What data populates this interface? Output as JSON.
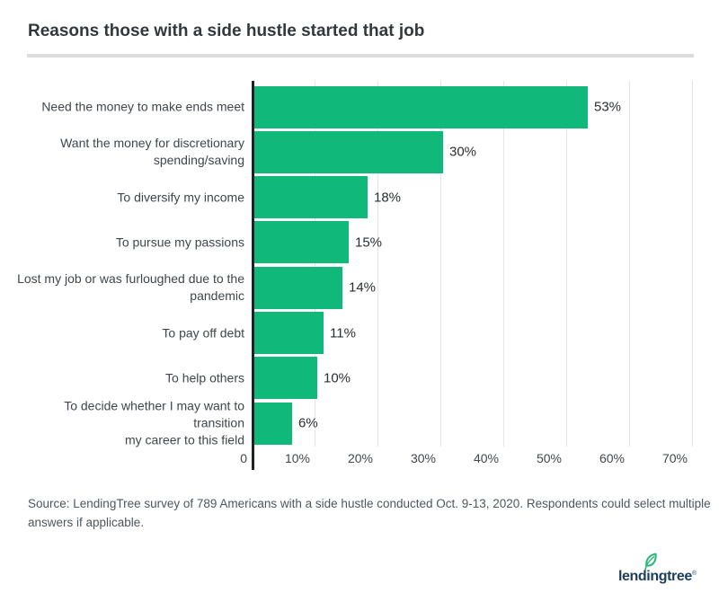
{
  "title": "Reasons those with a side hustle started that job",
  "chart_data": {
    "type": "bar",
    "orientation": "horizontal",
    "categories": [
      "Need the money to make ends meet",
      "Want the money for discretionary\nspending/saving",
      "To diversify my income",
      "To pursue my passions",
      "Lost my job or was furloughed due to the\npandemic",
      "To pay off debt",
      "To help others",
      "To decide whether I may want to transition\nmy career to this field"
    ],
    "values": [
      53,
      30,
      18,
      15,
      14,
      11,
      10,
      6
    ],
    "value_labels": [
      "53%",
      "30%",
      "18%",
      "15%",
      "14%",
      "11%",
      "10%",
      "6%"
    ],
    "x_ticks": [
      "0",
      "10%",
      "20%",
      "30%",
      "40%",
      "50%",
      "60%",
      "70%"
    ],
    "xlim": [
      0,
      70
    ],
    "x_tick_step": 10,
    "grid": "vertical",
    "legend": "none",
    "bar_color": "#10b87a",
    "axis_color": "#1f2225",
    "gridline_color": "#e3e4e5"
  },
  "source": {
    "text": "Source: LendingTree survey of 789 Americans with a side hustle conducted Oct. 9-13, 2020. Respondents could select multiple\nanswers if applicable."
  },
  "logo": {
    "text": "lendingtree",
    "registered": "®",
    "navy": "#1d3e5c",
    "leaf_green": "#2eb87d"
  }
}
